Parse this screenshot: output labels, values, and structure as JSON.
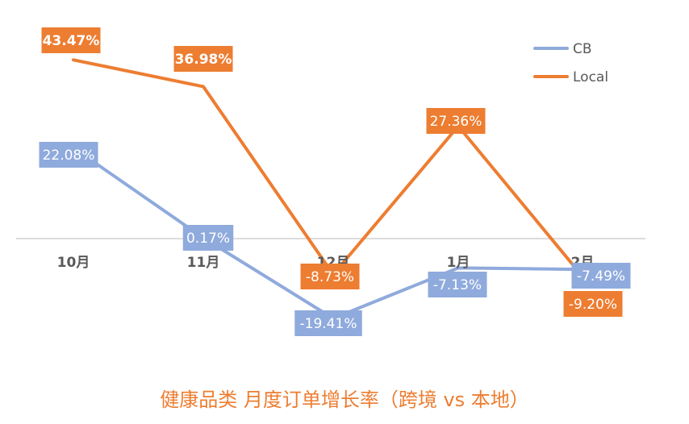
{
  "chart_data": {
    "type": "line",
    "title": "健康品类 月度订单增长率（跨境 vs 本地）",
    "categories": [
      "10月",
      "11月",
      "12月",
      "1月",
      "2月"
    ],
    "series": [
      {
        "name": "CB",
        "color": "#8FAADC",
        "values": [
          22.08,
          0.17,
          -19.41,
          -7.13,
          -7.49
        ],
        "labels": [
          "22.08%",
          "0.17%",
          "-19.41%",
          "-7.13%",
          "-7.49%"
        ]
      },
      {
        "name": "Local",
        "color": "#ED7D31",
        "values": [
          43.47,
          36.98,
          -8.73,
          27.36,
          -9.2
        ],
        "labels": [
          "43.47%",
          "36.98%",
          "-8.73%",
          "27.36%",
          "-9.20%"
        ]
      }
    ],
    "ylim": [
      -30,
      50
    ],
    "grid": false,
    "legend_position": "top-right",
    "xlabel": "",
    "ylabel": ""
  }
}
